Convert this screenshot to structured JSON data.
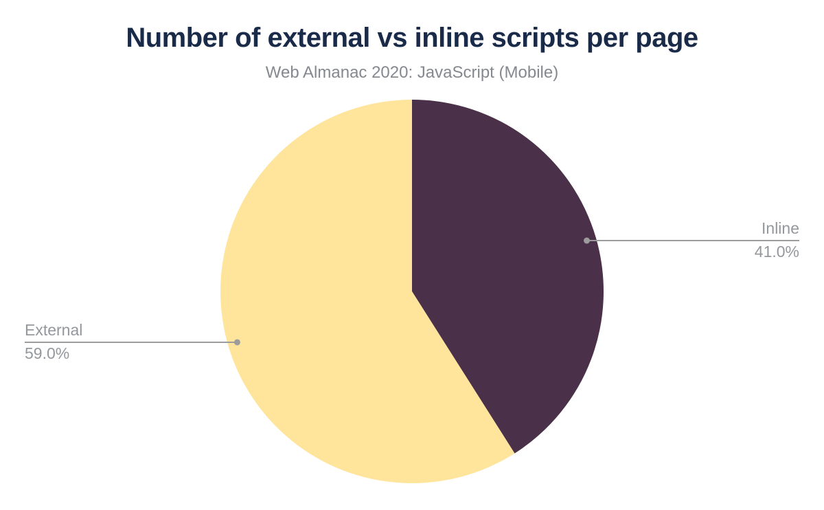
{
  "page": {
    "background": "#ffffff"
  },
  "chart_data": {
    "type": "pie",
    "title": "Number of external vs inline scripts per page",
    "subtitle": "Web Almanac 2020: JavaScript (Mobile)",
    "unit": "percent",
    "direction": "clockwise",
    "start_angle_deg_from_top": 0,
    "legend_position": "callout-labels",
    "grid": false,
    "slices": [
      {
        "label": "Inline",
        "value": 41.0,
        "display": "41.0%",
        "color": "#4a3049",
        "label_side": "right"
      },
      {
        "label": "External",
        "value": 59.0,
        "display": "59.0%",
        "color": "#ffe49c",
        "label_side": "left"
      }
    ]
  },
  "colors": {
    "title": "#1a2b49",
    "subtitle": "#85888e",
    "callout_text": "#94979c",
    "leader_line": "#9c9c9c",
    "slice_inline": "#4a3049",
    "slice_external": "#ffe49c",
    "background": "#ffffff"
  }
}
